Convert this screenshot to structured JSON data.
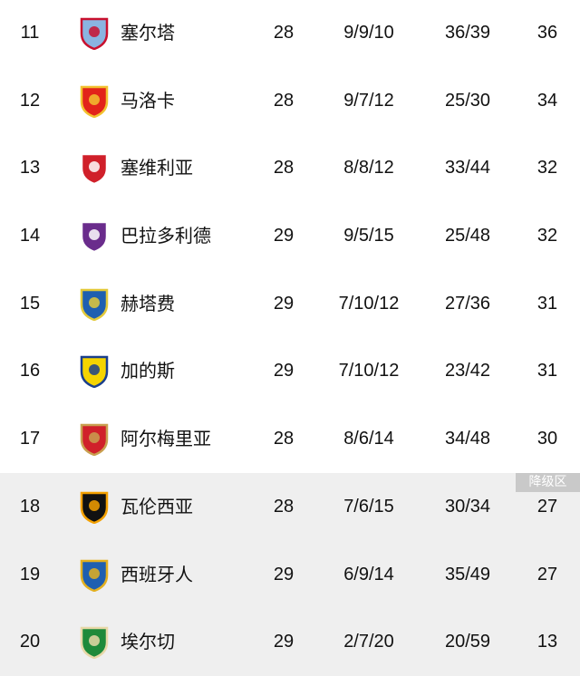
{
  "zone_label": "降级区",
  "rows": [
    {
      "rank": "11",
      "team": "塞尔塔",
      "played": "28",
      "wdl": "9/9/10",
      "goals": "36/39",
      "pts": "36",
      "crest": "celta-crest",
      "colors": [
        "#8ab4e0",
        "#c8102e"
      ]
    },
    {
      "rank": "12",
      "team": "马洛卡",
      "played": "28",
      "wdl": "9/7/12",
      "goals": "25/30",
      "pts": "34",
      "crest": "mallorca-crest",
      "colors": [
        "#e2231a",
        "#f2c230"
      ]
    },
    {
      "rank": "13",
      "team": "塞维利亚",
      "played": "28",
      "wdl": "8/8/12",
      "goals": "33/44",
      "pts": "32",
      "crest": "sevilla-crest",
      "colors": [
        "#d0202a",
        "#ffffff"
      ]
    },
    {
      "rank": "14",
      "team": "巴拉多利德",
      "played": "29",
      "wdl": "9/5/15",
      "goals": "25/48",
      "pts": "32",
      "crest": "valladolid-crest",
      "colors": [
        "#6a2c8c",
        "#ffffff"
      ]
    },
    {
      "rank": "15",
      "team": "赫塔费",
      "played": "29",
      "wdl": "7/10/12",
      "goals": "27/36",
      "pts": "31",
      "crest": "getafe-crest",
      "colors": [
        "#1f5fb0",
        "#e3c93a"
      ]
    },
    {
      "rank": "16",
      "team": "加的斯",
      "played": "29",
      "wdl": "7/10/12",
      "goals": "23/42",
      "pts": "31",
      "crest": "cadiz-crest",
      "colors": [
        "#f5d400",
        "#1a3f8c"
      ]
    },
    {
      "rank": "17",
      "team": "阿尔梅里亚",
      "played": "28",
      "wdl": "8/6/14",
      "goals": "34/48",
      "pts": "30",
      "crest": "almeria-crest",
      "colors": [
        "#d0202a",
        "#c9a050"
      ]
    },
    {
      "rank": "18",
      "team": "瓦伦西亚",
      "played": "28",
      "wdl": "7/6/15",
      "goals": "30/34",
      "pts": "27",
      "crest": "valencia-crest",
      "colors": [
        "#111111",
        "#f3a000"
      ]
    },
    {
      "rank": "19",
      "team": "西班牙人",
      "played": "29",
      "wdl": "6/9/14",
      "goals": "35/49",
      "pts": "27",
      "crest": "espanyol-crest",
      "colors": [
        "#1f5fb0",
        "#e3b020"
      ]
    },
    {
      "rank": "20",
      "team": "埃尔切",
      "played": "29",
      "wdl": "2/7/20",
      "goals": "20/59",
      "pts": "13",
      "crest": "elche-crest",
      "colors": [
        "#1f8a3a",
        "#e8d8a8"
      ]
    }
  ],
  "relegation_from_rank": 18
}
